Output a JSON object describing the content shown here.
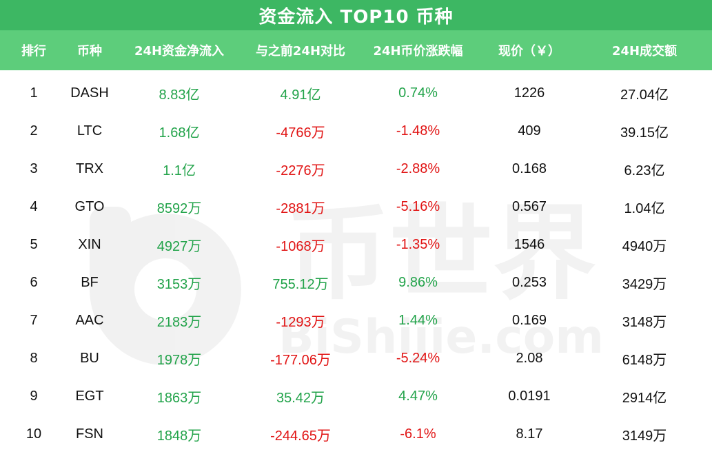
{
  "title": "资金流入 TOP10 币种",
  "headers": [
    "排行",
    "币种",
    "24H资金净流入",
    "与之前24H对比",
    "24H币价涨跌幅",
    "现价（￥）",
    "24H成交额"
  ],
  "watermark": {
    "brand": "币世界",
    "domain": "BiShijie.com"
  },
  "colors": {
    "title_bg": "#3db763",
    "header_bg": "#5dcd7b",
    "positive": "#22a34a",
    "negative": "#e11414"
  },
  "rows": [
    {
      "rank": "1",
      "coin": "DASH",
      "net_inflow": "8.83亿",
      "vs_prev": "4.91亿",
      "change": "0.74%",
      "price": "1226",
      "volume": "27.04亿"
    },
    {
      "rank": "2",
      "coin": "LTC",
      "net_inflow": "1.68亿",
      "vs_prev": "-4766万",
      "change": "-1.48%",
      "price": "409",
      "volume": "39.15亿"
    },
    {
      "rank": "3",
      "coin": "TRX",
      "net_inflow": "1.1亿",
      "vs_prev": "-2276万",
      "change": "-2.88%",
      "price": "0.168",
      "volume": "6.23亿"
    },
    {
      "rank": "4",
      "coin": "GTO",
      "net_inflow": "8592万",
      "vs_prev": "-2881万",
      "change": "-5.16%",
      "price": "0.567",
      "volume": "1.04亿"
    },
    {
      "rank": "5",
      "coin": "XIN",
      "net_inflow": "4927万",
      "vs_prev": "-1068万",
      "change": "-1.35%",
      "price": "1546",
      "volume": "4940万"
    },
    {
      "rank": "6",
      "coin": "BF",
      "net_inflow": "3153万",
      "vs_prev": "755.12万",
      "change": "9.86%",
      "price": "0.253",
      "volume": "3429万"
    },
    {
      "rank": "7",
      "coin": "AAC",
      "net_inflow": "2183万",
      "vs_prev": "-1293万",
      "change": "1.44%",
      "price": "0.169",
      "volume": "3148万"
    },
    {
      "rank": "8",
      "coin": "BU",
      "net_inflow": "1978万",
      "vs_prev": "-177.06万",
      "change": "-5.24%",
      "price": "2.08",
      "volume": "6148万"
    },
    {
      "rank": "9",
      "coin": "EGT",
      "net_inflow": "1863万",
      "vs_prev": "35.42万",
      "change": "4.47%",
      "price": "0.0191",
      "volume": "2914亿"
    },
    {
      "rank": "10",
      "coin": "FSN",
      "net_inflow": "1848万",
      "vs_prev": "-244.65万",
      "change": "-6.1%",
      "price": "8.17",
      "volume": "3149万"
    }
  ]
}
